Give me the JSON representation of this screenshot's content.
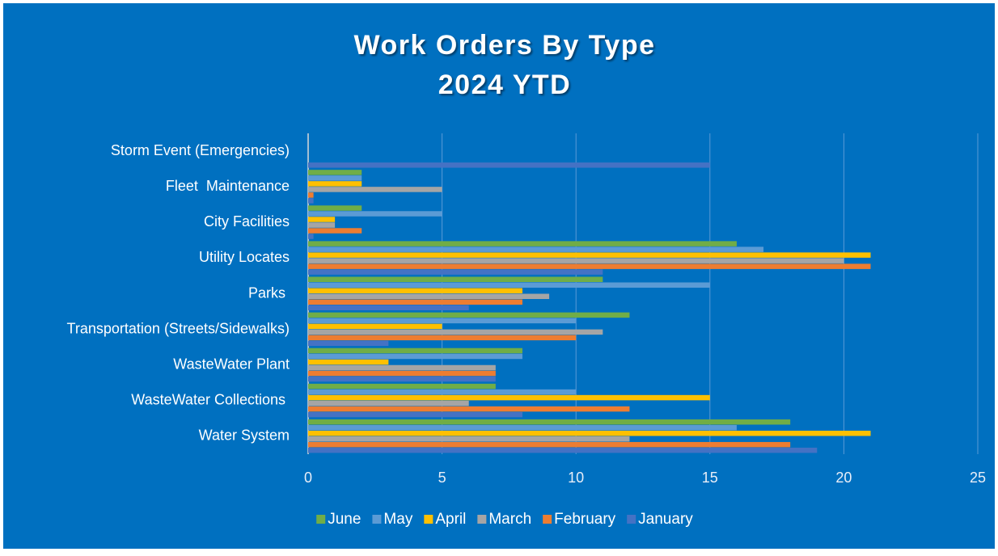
{
  "chart_data": {
    "type": "hbar",
    "title": "Work Orders By Type",
    "subtitle": "2024 YTD",
    "categories": [
      "Water System",
      "WasteWater Collections ",
      "WasteWater Plant",
      "Transportation (Streets/Sidewalks)",
      "Parks ",
      "Utility Locates",
      "City Facilities",
      "Fleet  Maintenance",
      "Storm Event (Emergencies)"
    ],
    "series": [
      {
        "name": "June",
        "color": "#70ad47",
        "values": [
          18,
          7,
          8,
          12,
          11,
          16,
          2,
          2,
          0
        ]
      },
      {
        "name": "May",
        "color": "#5b9bd5",
        "values": [
          16,
          10,
          8,
          10,
          15,
          17,
          5,
          2,
          0
        ]
      },
      {
        "name": "April",
        "color": "#ffc000",
        "values": [
          21,
          15,
          3,
          5,
          8,
          21,
          1,
          2,
          0
        ]
      },
      {
        "name": "March",
        "color": "#a5a5a5",
        "values": [
          12,
          6,
          7,
          11,
          9,
          20,
          1,
          5,
          0
        ]
      },
      {
        "name": "February",
        "color": "#ed7d31",
        "values": [
          18,
          12,
          7,
          10,
          8,
          21,
          2,
          0.2,
          0
        ]
      },
      {
        "name": "January",
        "color": "#4472c4",
        "values": [
          19,
          8,
          7,
          3,
          6,
          11,
          0.2,
          0.2,
          15
        ]
      }
    ],
    "xlim": [
      0,
      25
    ],
    "xticks": [
      0,
      5,
      10,
      15,
      20,
      25
    ],
    "grid": true,
    "legend": "bottom"
  }
}
